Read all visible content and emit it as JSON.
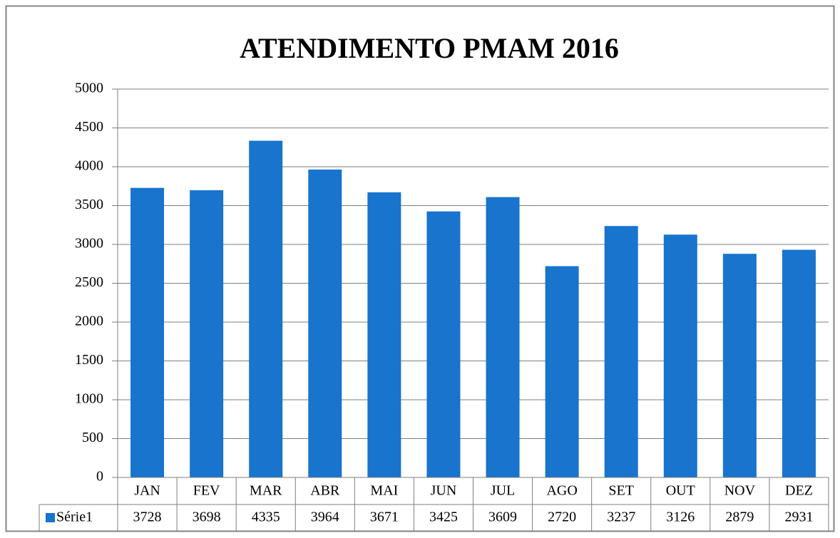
{
  "chart_data": {
    "type": "bar",
    "title": "ATENDIMENTO PMAM 2016",
    "categories": [
      "JAN",
      "FEV",
      "MAR",
      "ABR",
      "MAI",
      "JUN",
      "JUL",
      "AGO",
      "SET",
      "OUT",
      "NOV",
      "DEZ"
    ],
    "series": [
      {
        "name": "Série1",
        "color": "#1874cd",
        "values": [
          3728,
          3698,
          4335,
          3964,
          3671,
          3425,
          3609,
          2720,
          3237,
          3126,
          2879,
          2931
        ]
      }
    ],
    "ylim": [
      0,
      5000
    ],
    "yticks": [
      0,
      500,
      1000,
      1500,
      2000,
      2500,
      3000,
      3500,
      4000,
      4500,
      5000
    ],
    "grid": true,
    "data_table": true
  }
}
